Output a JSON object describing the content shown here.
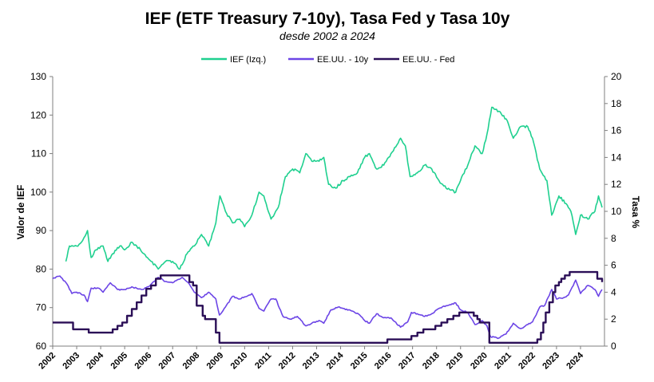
{
  "chart_data": {
    "type": "line",
    "title": "IEF (ETF Treasury 7-10y), Tasa Fed y Tasa 10y",
    "subtitle": "desde 2002 a 2024",
    "ylabel": "Valor de IEF",
    "y2label": "Tasa %",
    "ylim": [
      60,
      130
    ],
    "y2lim": [
      0,
      20
    ],
    "yticks": [
      "60",
      "70",
      "80",
      "90",
      "100",
      "110",
      "120",
      "130"
    ],
    "y2ticks": [
      "0",
      "2",
      "4",
      "6",
      "8",
      "10",
      "12",
      "14",
      "16",
      "18",
      "20"
    ],
    "xlim": [
      2002,
      2025
    ],
    "xticks": [
      "2002",
      "2003",
      "2004",
      "2005",
      "2006",
      "2007",
      "2008",
      "2009",
      "2010",
      "2011",
      "2012",
      "2013",
      "2014",
      "2015",
      "2016",
      "2017",
      "2018",
      "2019",
      "2020",
      "2021",
      "2022",
      "2023",
      "2024"
    ],
    "legend_position": "top-center",
    "grid": false,
    "series": [
      {
        "name": "IEF (Izq.)",
        "axis": "left",
        "color": "#1fd08f",
        "points": [
          [
            2002.55,
            82
          ],
          [
            2002.7,
            86
          ],
          [
            2003.0,
            86
          ],
          [
            2003.2,
            87
          ],
          [
            2003.45,
            90
          ],
          [
            2003.6,
            83
          ],
          [
            2003.8,
            85
          ],
          [
            2004.1,
            86
          ],
          [
            2004.3,
            82
          ],
          [
            2004.5,
            84
          ],
          [
            2004.8,
            86
          ],
          [
            2005.0,
            85
          ],
          [
            2005.3,
            87
          ],
          [
            2005.5,
            86
          ],
          [
            2005.8,
            84
          ],
          [
            2006.1,
            82
          ],
          [
            2006.4,
            80
          ],
          [
            2006.7,
            82
          ],
          [
            2007.0,
            82
          ],
          [
            2007.3,
            80
          ],
          [
            2007.6,
            84
          ],
          [
            2007.9,
            86
          ],
          [
            2008.2,
            89
          ],
          [
            2008.5,
            86
          ],
          [
            2008.8,
            92
          ],
          [
            2008.97,
            99
          ],
          [
            2009.2,
            95
          ],
          [
            2009.5,
            92
          ],
          [
            2009.8,
            93
          ],
          [
            2010.0,
            91
          ],
          [
            2010.3,
            94
          ],
          [
            2010.6,
            100
          ],
          [
            2010.8,
            99
          ],
          [
            2011.1,
            93
          ],
          [
            2011.4,
            96
          ],
          [
            2011.7,
            104
          ],
          [
            2012.0,
            106
          ],
          [
            2012.3,
            105
          ],
          [
            2012.55,
            110
          ],
          [
            2012.8,
            108
          ],
          [
            2013.1,
            108
          ],
          [
            2013.3,
            109
          ],
          [
            2013.5,
            102
          ],
          [
            2013.8,
            101
          ],
          [
            2014.1,
            103
          ],
          [
            2014.4,
            104
          ],
          [
            2014.7,
            105
          ],
          [
            2015.0,
            109
          ],
          [
            2015.2,
            110
          ],
          [
            2015.5,
            106
          ],
          [
            2015.8,
            107
          ],
          [
            2016.1,
            110
          ],
          [
            2016.5,
            114
          ],
          [
            2016.7,
            112
          ],
          [
            2016.9,
            104
          ],
          [
            2017.2,
            105
          ],
          [
            2017.5,
            107
          ],
          [
            2017.8,
            106
          ],
          [
            2018.1,
            103
          ],
          [
            2018.4,
            101
          ],
          [
            2018.8,
            100
          ],
          [
            2019.0,
            103
          ],
          [
            2019.3,
            107
          ],
          [
            2019.6,
            112
          ],
          [
            2019.9,
            110
          ],
          [
            2020.1,
            115
          ],
          [
            2020.3,
            122
          ],
          [
            2020.6,
            121
          ],
          [
            2020.9,
            119
          ],
          [
            2021.2,
            114
          ],
          [
            2021.5,
            117
          ],
          [
            2021.8,
            117
          ],
          [
            2022.0,
            114
          ],
          [
            2022.3,
            106
          ],
          [
            2022.6,
            103
          ],
          [
            2022.8,
            94
          ],
          [
            2023.1,
            99
          ],
          [
            2023.4,
            97
          ],
          [
            2023.6,
            95
          ],
          [
            2023.8,
            89
          ],
          [
            2024.0,
            94
          ],
          [
            2024.3,
            93
          ],
          [
            2024.6,
            95
          ],
          [
            2024.75,
            99
          ],
          [
            2024.9,
            96
          ]
        ]
      },
      {
        "name": "EE.UU. - 10y",
        "axis": "right",
        "color": "#6c45e6",
        "points": [
          [
            2002.0,
            5.0
          ],
          [
            2002.3,
            5.2
          ],
          [
            2002.6,
            4.6
          ],
          [
            2002.8,
            3.9
          ],
          [
            2003.0,
            4.0
          ],
          [
            2003.3,
            3.8
          ],
          [
            2003.45,
            3.3
          ],
          [
            2003.6,
            4.3
          ],
          [
            2003.9,
            4.3
          ],
          [
            2004.1,
            4.0
          ],
          [
            2004.4,
            4.7
          ],
          [
            2004.7,
            4.2
          ],
          [
            2005.0,
            4.2
          ],
          [
            2005.3,
            4.4
          ],
          [
            2005.7,
            4.2
          ],
          [
            2006.0,
            4.4
          ],
          [
            2006.4,
            5.1
          ],
          [
            2006.7,
            4.8
          ],
          [
            2007.0,
            4.7
          ],
          [
            2007.4,
            5.1
          ],
          [
            2007.7,
            4.6
          ],
          [
            2007.9,
            4.0
          ],
          [
            2008.2,
            3.6
          ],
          [
            2008.5,
            4.0
          ],
          [
            2008.8,
            3.5
          ],
          [
            2008.95,
            2.3
          ],
          [
            2009.2,
            2.9
          ],
          [
            2009.5,
            3.7
          ],
          [
            2009.8,
            3.5
          ],
          [
            2010.1,
            3.7
          ],
          [
            2010.3,
            3.9
          ],
          [
            2010.6,
            2.8
          ],
          [
            2010.8,
            2.6
          ],
          [
            2011.1,
            3.5
          ],
          [
            2011.3,
            3.5
          ],
          [
            2011.6,
            2.2
          ],
          [
            2011.9,
            2.0
          ],
          [
            2012.2,
            2.2
          ],
          [
            2012.55,
            1.5
          ],
          [
            2012.8,
            1.7
          ],
          [
            2013.1,
            1.9
          ],
          [
            2013.3,
            1.7
          ],
          [
            2013.6,
            2.7
          ],
          [
            2013.9,
            2.9
          ],
          [
            2014.1,
            2.8
          ],
          [
            2014.5,
            2.6
          ],
          [
            2014.8,
            2.3
          ],
          [
            2015.0,
            1.9
          ],
          [
            2015.2,
            1.7
          ],
          [
            2015.5,
            2.4
          ],
          [
            2015.8,
            2.1
          ],
          [
            2016.1,
            2.1
          ],
          [
            2016.5,
            1.4
          ],
          [
            2016.8,
            1.8
          ],
          [
            2016.95,
            2.5
          ],
          [
            2017.2,
            2.4
          ],
          [
            2017.5,
            2.2
          ],
          [
            2017.8,
            2.4
          ],
          [
            2018.1,
            2.8
          ],
          [
            2018.4,
            3.0
          ],
          [
            2018.8,
            3.2
          ],
          [
            2019.0,
            2.7
          ],
          [
            2019.3,
            2.5
          ],
          [
            2019.6,
            1.6
          ],
          [
            2019.9,
            1.9
          ],
          [
            2020.1,
            1.5
          ],
          [
            2020.25,
            0.7
          ],
          [
            2020.6,
            0.6
          ],
          [
            2020.9,
            0.9
          ],
          [
            2021.2,
            1.7
          ],
          [
            2021.5,
            1.3
          ],
          [
            2021.8,
            1.6
          ],
          [
            2022.0,
            1.8
          ],
          [
            2022.3,
            2.9
          ],
          [
            2022.5,
            3.0
          ],
          [
            2022.8,
            4.2
          ],
          [
            2023.0,
            3.5
          ],
          [
            2023.3,
            3.6
          ],
          [
            2023.5,
            3.8
          ],
          [
            2023.8,
            4.9
          ],
          [
            2024.0,
            3.9
          ],
          [
            2024.3,
            4.5
          ],
          [
            2024.6,
            4.2
          ],
          [
            2024.75,
            3.7
          ],
          [
            2024.9,
            4.2
          ]
        ]
      },
      {
        "name": "EE.UU. - Fed",
        "axis": "right",
        "color": "#2b0f57",
        "step": true,
        "points": [
          [
            2002.0,
            1.75
          ],
          [
            2002.85,
            1.75
          ],
          [
            2002.85,
            1.25
          ],
          [
            2003.5,
            1.25
          ],
          [
            2003.5,
            1.0
          ],
          [
            2004.5,
            1.0
          ],
          [
            2004.5,
            1.25
          ],
          [
            2004.7,
            1.5
          ],
          [
            2004.9,
            1.75
          ],
          [
            2005.1,
            2.25
          ],
          [
            2005.3,
            2.75
          ],
          [
            2005.5,
            3.25
          ],
          [
            2005.7,
            3.75
          ],
          [
            2005.9,
            4.25
          ],
          [
            2006.1,
            4.5
          ],
          [
            2006.3,
            5.0
          ],
          [
            2006.5,
            5.25
          ],
          [
            2007.7,
            5.25
          ],
          [
            2007.7,
            4.75
          ],
          [
            2007.85,
            4.5
          ],
          [
            2008.0,
            3.0
          ],
          [
            2008.25,
            2.25
          ],
          [
            2008.35,
            2.0
          ],
          [
            2008.8,
            1.0
          ],
          [
            2008.95,
            0.25
          ],
          [
            2015.95,
            0.25
          ],
          [
            2015.95,
            0.5
          ],
          [
            2016.95,
            0.75
          ],
          [
            2017.2,
            1.0
          ],
          [
            2017.45,
            1.25
          ],
          [
            2017.95,
            1.5
          ],
          [
            2018.2,
            1.75
          ],
          [
            2018.45,
            2.0
          ],
          [
            2018.7,
            2.25
          ],
          [
            2018.95,
            2.5
          ],
          [
            2019.55,
            2.25
          ],
          [
            2019.7,
            2.0
          ],
          [
            2019.8,
            1.75
          ],
          [
            2020.15,
            1.75
          ],
          [
            2020.2,
            0.25
          ],
          [
            2022.2,
            0.25
          ],
          [
            2022.2,
            0.5
          ],
          [
            2022.35,
            1.0
          ],
          [
            2022.45,
            1.75
          ],
          [
            2022.55,
            2.5
          ],
          [
            2022.7,
            3.25
          ],
          [
            2022.85,
            4.0
          ],
          [
            2022.95,
            4.5
          ],
          [
            2023.1,
            4.75
          ],
          [
            2023.2,
            5.0
          ],
          [
            2023.35,
            5.25
          ],
          [
            2023.55,
            5.5
          ],
          [
            2024.7,
            5.5
          ],
          [
            2024.7,
            5.0
          ],
          [
            2024.9,
            4.75
          ]
        ]
      }
    ]
  }
}
